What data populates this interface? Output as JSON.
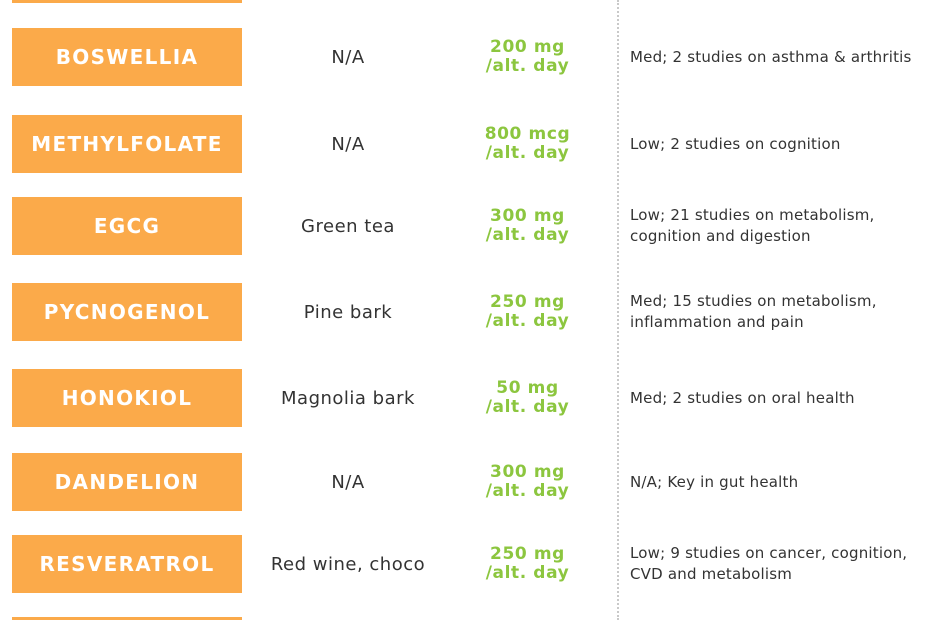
{
  "table": {
    "rows": [
      {
        "name": "BOSWELLIA",
        "source": "N/A",
        "dose_amount": "200 mg",
        "dose_freq": "/alt. day",
        "evidence": "Med; 2 studies on asthma & arthritis"
      },
      {
        "name": "METHYLFOLATE",
        "source": "N/A",
        "dose_amount": "800 mcg",
        "dose_freq": "/alt. day",
        "evidence": "Low; 2 studies on cognition"
      },
      {
        "name": "EGCG",
        "source": "Green tea",
        "dose_amount": "300 mg",
        "dose_freq": "/alt. day",
        "evidence": "Low; 21 studies on metabolism, cognition and digestion"
      },
      {
        "name": "PYCNOGENOL",
        "source": "Pine bark",
        "dose_amount": "250 mg",
        "dose_freq": "/alt. day",
        "evidence": "Med; 15 studies on metabolism, inflammation and pain"
      },
      {
        "name": "HONOKIOL",
        "source": "Magnolia bark",
        "dose_amount": "50 mg",
        "dose_freq": "/alt. day",
        "evidence": "Med; 2 studies on oral health"
      },
      {
        "name": "DANDELION",
        "source": "N/A",
        "dose_amount": "300 mg",
        "dose_freq": "/alt. day",
        "evidence": "N/A; Key in gut health"
      },
      {
        "name": "RESVERATROL",
        "source": "Red wine, choco",
        "dose_amount": "250 mg",
        "dose_freq": "/alt. day",
        "evidence": "Low; 9 studies on cancer, cognition, CVD and metabolism"
      }
    ]
  },
  "colors": {
    "label_bg": "#fbaa4a",
    "dose_text": "#8cc63f",
    "body_text": "#333333"
  }
}
